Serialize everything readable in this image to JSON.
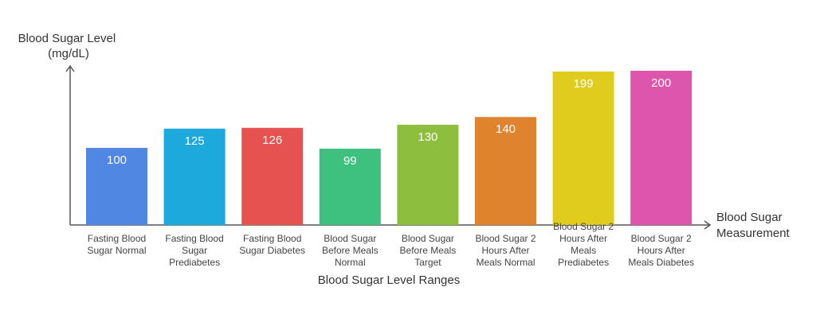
{
  "chart_data": {
    "type": "bar",
    "ylabel_lines": [
      "Blood Sugar Level",
      "(mg/dL)"
    ],
    "x_axis_end_label_lines": [
      "Blood Sugar",
      "Measurement"
    ],
    "xlabel": "Blood Sugar Level Ranges",
    "categories": [
      [
        "Fasting Blood",
        "Sugar Normal"
      ],
      [
        "Fasting Blood",
        "Sugar",
        "Prediabetes"
      ],
      [
        "Fasting Blood",
        "Sugar Diabetes"
      ],
      [
        "Blood Sugar",
        "Before Meals",
        "Normal"
      ],
      [
        "Blood Sugar",
        "Before Meals",
        "Target"
      ],
      [
        "Blood Sugar 2",
        "Hours After",
        "Meals Normal"
      ],
      [
        "Blood Sugar 2",
        "Hours After",
        "Meals",
        "Prediabetes"
      ],
      [
        "Blood Sugar 2",
        "Hours After",
        "Meals Diabetes"
      ]
    ],
    "values": [
      100,
      125,
      126,
      99,
      130,
      140,
      199,
      200
    ],
    "colors": [
      "#4f87e3",
      "#1ea9dc",
      "#e5524f",
      "#3ec07e",
      "#8dbe3d",
      "#e0832f",
      "#e0cc1d",
      "#de55ad"
    ],
    "ylim": [
      0,
      200
    ],
    "grid": false,
    "legend": "none"
  }
}
